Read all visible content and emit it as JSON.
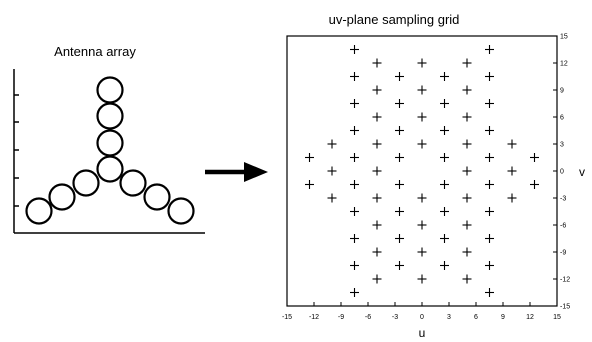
{
  "left_panel": {
    "title": "Antenna array"
  },
  "right_panel": {
    "title": "uv-plane sampling grid"
  },
  "chart_data": {
    "type": "scatter",
    "title": "uv-plane sampling grid",
    "xlabel": "u",
    "ylabel": "v",
    "xlim": [
      -15,
      15
    ],
    "ylim": [
      -15,
      15
    ],
    "xticks": [
      "-15",
      "-12",
      "-9",
      "-6",
      "-3",
      "0",
      "3",
      "6",
      "9",
      "12",
      "15"
    ],
    "yticks": [
      "15",
      "12",
      "9",
      "6",
      "3",
      "0",
      "-3",
      "-6",
      "-9",
      "-12",
      "-15"
    ],
    "marker": "plus",
    "grid": false,
    "points": [
      [
        -7.5,
        13.5
      ],
      [
        7.5,
        13.5
      ],
      [
        -5,
        12
      ],
      [
        0,
        12
      ],
      [
        5,
        12
      ],
      [
        -7.5,
        10.5
      ],
      [
        -2.5,
        10.5
      ],
      [
        2.5,
        10.5
      ],
      [
        7.5,
        10.5
      ],
      [
        -5,
        9
      ],
      [
        0,
        9
      ],
      [
        5,
        9
      ],
      [
        -7.5,
        7.5
      ],
      [
        -2.5,
        7.5
      ],
      [
        2.5,
        7.5
      ],
      [
        7.5,
        7.5
      ],
      [
        -5,
        6
      ],
      [
        0,
        6
      ],
      [
        5,
        6
      ],
      [
        -7.5,
        4.5
      ],
      [
        -2.5,
        4.5
      ],
      [
        2.5,
        4.5
      ],
      [
        7.5,
        4.5
      ],
      [
        -10,
        3
      ],
      [
        -5,
        3
      ],
      [
        0,
        3
      ],
      [
        5,
        3
      ],
      [
        10,
        3
      ],
      [
        -12.5,
        1.5
      ],
      [
        -7.5,
        1.5
      ],
      [
        -2.5,
        1.5
      ],
      [
        2.5,
        1.5
      ],
      [
        7.5,
        1.5
      ],
      [
        12.5,
        1.5
      ],
      [
        -10,
        0
      ],
      [
        -5,
        0
      ],
      [
        5,
        0
      ],
      [
        10,
        0
      ],
      [
        -12.5,
        -1.5
      ],
      [
        -7.5,
        -1.5
      ],
      [
        -2.5,
        -1.5
      ],
      [
        2.5,
        -1.5
      ],
      [
        7.5,
        -1.5
      ],
      [
        12.5,
        -1.5
      ],
      [
        -10,
        -3
      ],
      [
        -5,
        -3
      ],
      [
        0,
        -3
      ],
      [
        5,
        -3
      ],
      [
        10,
        -3
      ],
      [
        -7.5,
        -4.5
      ],
      [
        -2.5,
        -4.5
      ],
      [
        2.5,
        -4.5
      ],
      [
        7.5,
        -4.5
      ],
      [
        -5,
        -6
      ],
      [
        0,
        -6
      ],
      [
        5,
        -6
      ],
      [
        -7.5,
        -7.5
      ],
      [
        -2.5,
        -7.5
      ],
      [
        2.5,
        -7.5
      ],
      [
        7.5,
        -7.5
      ],
      [
        -5,
        -9
      ],
      [
        0,
        -9
      ],
      [
        5,
        -9
      ],
      [
        -7.5,
        -10.5
      ],
      [
        -2.5,
        -10.5
      ],
      [
        2.5,
        -10.5
      ],
      [
        7.5,
        -10.5
      ],
      [
        -5,
        -12
      ],
      [
        0,
        -12
      ],
      [
        5,
        -12
      ],
      [
        -7.5,
        -13.5
      ],
      [
        7.5,
        -13.5
      ]
    ]
  }
}
